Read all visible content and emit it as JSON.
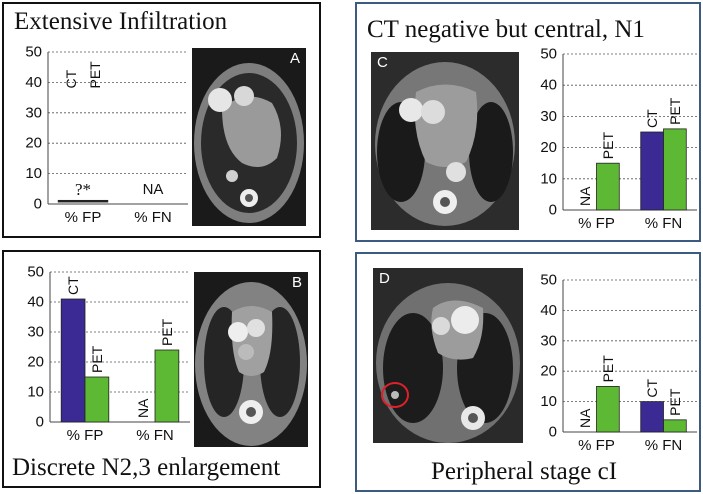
{
  "colors": {
    "ct": "#3b2a93",
    "pet": "#5db833",
    "blue_border": "#3d5a80"
  },
  "panels": [
    {
      "title": "Extensive Infiltration",
      "image_letter": "A"
    },
    {
      "title": "CT negative but central, N1",
      "image_letter": "C"
    },
    {
      "title": "Discrete N2,3 enlargement",
      "image_letter": "B"
    },
    {
      "title": "Peripheral stage cI",
      "image_letter": "D"
    }
  ],
  "chart_data": [
    {
      "panel": "Extensive Infiltration",
      "type": "bar",
      "categories": [
        "% FP",
        "% FN"
      ],
      "ylim": [
        0,
        50
      ],
      "yticks": [
        0,
        10,
        20,
        30,
        40,
        50
      ],
      "grid": true,
      "series": [
        {
          "name": "CT",
          "values": [
            null,
            null
          ]
        },
        {
          "name": "PET",
          "values": [
            null,
            null
          ]
        }
      ],
      "header_labels": [
        "CT",
        "PET"
      ],
      "annotations": [
        {
          "text": "?*",
          "category": "% FP",
          "value": 1
        },
        {
          "text": "NA",
          "category": "% FN",
          "value": 0
        }
      ]
    },
    {
      "panel": "CT negative but central, N1",
      "type": "bar",
      "categories": [
        "% FP",
        "% FN"
      ],
      "ylim": [
        0,
        50
      ],
      "yticks": [
        0,
        10,
        20,
        30,
        40,
        50
      ],
      "grid": true,
      "series": [
        {
          "name": "CT",
          "values": [
            null,
            25
          ]
        },
        {
          "name": "PET",
          "values": [
            15,
            26
          ]
        }
      ],
      "bar_labels": [
        [
          "NA",
          "PET"
        ],
        [
          "CT",
          "PET"
        ]
      ]
    },
    {
      "panel": "Discrete N2,3 enlargement",
      "type": "bar",
      "categories": [
        "% FP",
        "% FN"
      ],
      "ylim": [
        0,
        50
      ],
      "yticks": [
        0,
        10,
        20,
        30,
        40,
        50
      ],
      "grid": true,
      "series": [
        {
          "name": "CT",
          "values": [
            41,
            null
          ]
        },
        {
          "name": "PET",
          "values": [
            15,
            24
          ]
        }
      ],
      "bar_labels": [
        [
          "CT",
          "PET"
        ],
        [
          "NA",
          "PET"
        ]
      ]
    },
    {
      "panel": "Peripheral stage cI",
      "type": "bar",
      "categories": [
        "% FP",
        "% FN"
      ],
      "ylim": [
        0,
        50
      ],
      "yticks": [
        0,
        10,
        20,
        30,
        40,
        50
      ],
      "grid": true,
      "series": [
        {
          "name": "CT",
          "values": [
            null,
            10
          ]
        },
        {
          "name": "PET",
          "values": [
            15,
            4
          ]
        }
      ],
      "bar_labels": [
        [
          "NA",
          "PET"
        ],
        [
          "CT",
          "PET"
        ]
      ]
    }
  ]
}
